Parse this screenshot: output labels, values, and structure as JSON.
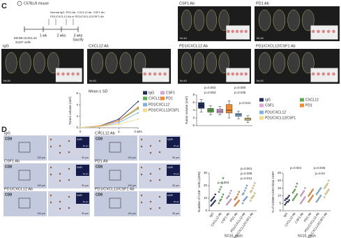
{
  "panel_labels": {
    "c": "C",
    "d": "D"
  },
  "schematic": {
    "mouse": "C57BL/6 mouse",
    "treatment": [
      "Normal IgG, PD1 Ab, CXCL12 Ab, CSF1 Ab,",
      "PD1/CXCL12 Ab or PD1/CXCL12/CSF1 Ab"
    ],
    "cells": [
      "MC38-vCXCL12",
      "2x10⁶ cells"
    ],
    "timeline": [
      "1 wk",
      "2 wks",
      "3 wks"
    ],
    "end": "Sacrify"
  },
  "photos": {
    "labels": [
      "CSF1 Ab",
      "PD1 Ab",
      "IgG",
      "CXCL12 Ab",
      "PD1/CXCL12 Ab",
      "PD1/CXCL12/CSF1 Ab"
    ],
    "n": "N=10",
    "scale": "1cm"
  },
  "ihc": {
    "labels": [
      "IgG",
      "CXCL12 Ab",
      "CSF1 Ab",
      "PD1 Ab",
      "PD1/CXCL12 Ab",
      "PD1/CXCL12/CSF1 Ab"
    ],
    "stain": "CD8",
    "inset_stain": "DAPI",
    "scales": [
      "100 μm",
      "50 μm",
      "10 μm"
    ]
  },
  "chart_data": [
    {
      "type": "line",
      "annotation": "Mean ± SD",
      "ylabel": "Tumor volume (cm³)",
      "x": [
        0,
        1,
        2,
        3
      ],
      "xlim": [
        0,
        3
      ],
      "xticks": [
        0,
        1,
        2,
        {
          "value": 3,
          "label": "3 wks"
        }
      ],
      "ylim": [
        0,
        6
      ],
      "yticks": [
        0,
        2,
        4,
        6
      ],
      "series": [
        {
          "name": "IgG",
          "color": "#1f2d5c",
          "values": [
            0,
            0.3,
            1.5,
            4.6
          ]
        },
        {
          "name": "CSF1",
          "color": "#d9a6d4",
          "values": [
            0,
            0.3,
            1.3,
            3.5
          ]
        },
        {
          "name": "CXCL12",
          "color": "#5fae4e",
          "values": [
            0,
            0.3,
            1.2,
            3.3
          ]
        },
        {
          "name": "PD1",
          "color": "#f08a2c",
          "values": [
            0,
            0.3,
            1.2,
            3.6
          ]
        },
        {
          "name": "PD1/CXCL12",
          "color": "#7fb2dc",
          "values": [
            0,
            0.2,
            0.9,
            2.6
          ]
        },
        {
          "name": "PD1/CXCL12/CSF1",
          "color": "#f3d98a",
          "values": [
            0,
            0.2,
            0.6,
            1.5
          ]
        }
      ]
    },
    {
      "type": "box",
      "ylabel": "Tumor volume (cm³)",
      "ylim": [
        0,
        8
      ],
      "yticks": [
        0,
        2,
        4,
        6,
        8
      ],
      "annotations": [
        "p=0.002",
        "p=0.053",
        "p=0.000",
        "p=0.036",
        "p=0.041"
      ],
      "series": [
        {
          "name": "IgG",
          "color": "#1f2d5c",
          "whislo": 3.5,
          "q1": 4.5,
          "med": 5.2,
          "q3": 6.0,
          "whishi": 6.8
        },
        {
          "name": "CXCL12",
          "color": "#5fae4e",
          "whislo": 2.8,
          "q1": 3.5,
          "med": 4.0,
          "q3": 4.5,
          "whishi": 5.2
        },
        {
          "name": "CSF1",
          "color": "#d9a6d4",
          "whislo": 2.8,
          "q1": 3.3,
          "med": 3.8,
          "q3": 4.3,
          "whishi": 5.0
        },
        {
          "name": "PD1",
          "color": "#f08a2c",
          "whislo": 2.0,
          "q1": 3.3,
          "med": 4.0,
          "q3": 5.5,
          "whishi": 6.5
        },
        {
          "name": "PD1/CXCL12",
          "color": "#7fb2dc",
          "whislo": 1.8,
          "q1": 2.4,
          "med": 2.8,
          "q3": 3.2,
          "whishi": 3.8
        },
        {
          "name": "PD1/CXCL12/CSF1",
          "color": "#f3d98a",
          "whislo": 0.8,
          "q1": 1.4,
          "med": 1.7,
          "q3": 2.0,
          "whishi": 2.6
        }
      ]
    },
    {
      "type": "strip",
      "ylabel": "Number of CD8⁺ cells (x200)",
      "ylim": [
        0,
        30
      ],
      "yticks": [
        0,
        10,
        20,
        30
      ],
      "note": "N=10, each",
      "annotations": [
        "p=0.004",
        "p=0.001",
        "p=0.008",
        "p=0.012"
      ],
      "categories": [
        "IgG",
        "CXCL12 Ab",
        "CSF1 Ab",
        "PD1 Ab",
        "PD1/CXCL12 Ab",
        "PD1/CXCL12/CSF1 Ab"
      ],
      "colors": [
        "#1f2d5c",
        "#5fae4e",
        "#d9a6d4",
        "#f08a2c",
        "#7fb2dc",
        "#f3d98a"
      ],
      "values": [
        [
          4,
          5,
          6,
          7,
          8,
          8,
          9,
          10,
          11,
          13
        ],
        [
          6,
          8,
          9,
          11,
          13,
          15,
          17,
          19,
          22,
          26
        ],
        [
          5,
          6,
          7,
          8,
          9,
          10,
          11,
          12,
          14,
          16
        ],
        [
          4,
          5,
          6,
          7,
          8,
          9,
          10,
          11,
          13,
          15
        ],
        [
          6,
          8,
          9,
          10,
          11,
          13,
          14,
          16,
          18,
          20
        ],
        [
          8,
          10,
          11,
          12,
          14,
          15,
          16,
          18,
          20,
          22
        ]
      ]
    },
    {
      "type": "strip",
      "ylabel": "% of GZMB+CD8+/total CD8+",
      "ylim": [
        0,
        25
      ],
      "yticks": [
        0,
        5,
        10,
        15,
        20,
        25
      ],
      "note": "N=10, each",
      "annotations": [
        "p=0.001",
        "p=0.045",
        "p=0.04"
      ],
      "categories": [
        "IgG",
        "CXCL12 Ab",
        "CSF1 Ab",
        "PD1 Ab",
        "PD1/CXCL12 Ab",
        "PD1/CXCL12/CSF1 Ab"
      ],
      "colors": [
        "#1f2d5c",
        "#5fae4e",
        "#d9a6d4",
        "#f08a2c",
        "#7fb2dc",
        "#f3d98a"
      ],
      "values": [
        [
          4,
          5,
          6,
          6,
          7,
          7,
          8,
          8,
          9,
          10
        ],
        [
          7,
          8,
          9,
          10,
          11,
          12,
          13,
          14,
          16,
          18
        ],
        [
          5,
          6,
          7,
          8,
          9,
          10,
          11,
          12,
          13,
          15
        ],
        [
          6,
          7,
          8,
          9,
          10,
          10,
          11,
          12,
          13,
          14
        ],
        [
          6,
          7,
          8,
          9,
          10,
          11,
          12,
          13,
          14,
          15
        ],
        [
          9,
          11,
          12,
          13,
          14,
          15,
          16,
          17,
          18,
          20
        ]
      ]
    }
  ]
}
